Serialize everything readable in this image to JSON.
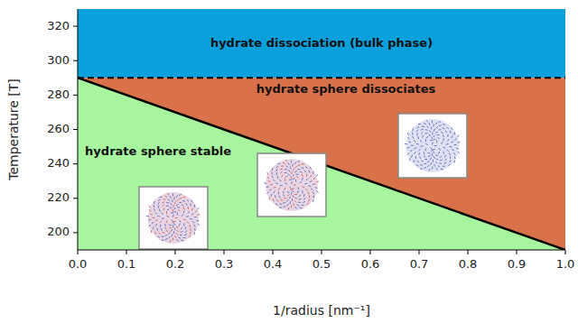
{
  "chart_data": {
    "type": "area",
    "xlabel": "1/radius [nm⁻¹]",
    "ylabel": "Temperature [T]",
    "xlim": [
      0,
      1
    ],
    "ylim": [
      190,
      330
    ],
    "xticks": [
      {
        "value": 0,
        "label": "0.0"
      },
      0.1,
      0.2,
      0.3,
      0.4,
      0.5,
      0.6,
      0.7,
      0.8,
      0.9,
      {
        "value": 1,
        "label": "1.0"
      }
    ],
    "yticks": [
      200,
      220,
      240,
      260,
      280,
      300,
      320
    ],
    "colors": [
      "#0aa0dc",
      "#d9714a",
      "#a8f5a0"
    ],
    "series": [
      {
        "x": [
          0,
          1
        ],
        "values": [
          290,
          190
        ],
        "color": "#000000",
        "line_style": "solid"
      },
      {
        "x": [
          0,
          1
        ],
        "values": [
          290,
          290
        ],
        "color": "#000000",
        "line_style": "dashed"
      }
    ],
    "annotations": [
      {
        "text": "hydrate dissociation (bulk phase)",
        "x": 0.5,
        "y": 310
      },
      {
        "text": "hydrate sphere dissociates",
        "x": 0.55,
        "y": 283
      },
      {
        "text": "hydrate sphere stable",
        "x": 0.165,
        "y": 247
      }
    ]
  }
}
